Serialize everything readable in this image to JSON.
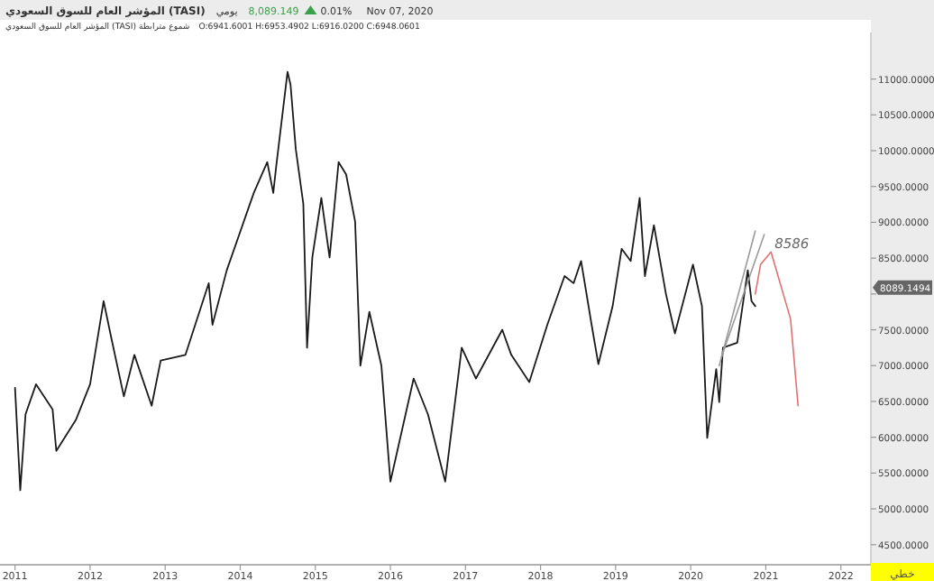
{
  "chart_data": {
    "type": "line",
    "title": "المؤشر العام للسوق السعودي (TASI)",
    "xlim": [
      2010.8,
      2022.4
    ],
    "ylim": [
      4220,
      11650
    ],
    "xticks": [
      2011,
      2012,
      2013,
      2014,
      2015,
      2016,
      2017,
      2018,
      2019,
      2020,
      2021,
      2022
    ],
    "yticks": [
      {
        "value": 4500,
        "label": "4500.0000"
      },
      {
        "value": 5000,
        "label": "5000.0000"
      },
      {
        "value": 5500,
        "label": "5500.0000"
      },
      {
        "value": 6000,
        "label": "6000.0000"
      },
      {
        "value": 6500,
        "label": "6500.0000"
      },
      {
        "value": 7000,
        "label": "7000.0000"
      },
      {
        "value": 7500,
        "label": "7500.0000"
      },
      {
        "value": 8000,
        "label": null
      },
      {
        "value": 8500,
        "label": "8500.0000"
      },
      {
        "value": 9000,
        "label": "9000.0000"
      },
      {
        "value": 9500,
        "label": "9500.0000"
      },
      {
        "value": 10000,
        "label": "10000.0000"
      },
      {
        "value": 10500,
        "label": "10500.0000"
      },
      {
        "value": 11000,
        "label": "11000.0000"
      }
    ],
    "grid": false,
    "series": [
      {
        "color": "#1a1a1a",
        "x": [
          2011.0,
          2011.07,
          2011.14,
          2011.28,
          2011.5,
          2011.55,
          2011.81,
          2012.0,
          2012.18,
          2012.28,
          2012.45,
          2012.59,
          2012.82,
          2012.94,
          2013.27,
          2013.58,
          2013.63,
          2013.82,
          2014.18,
          2014.36,
          2014.44,
          2014.48,
          2014.63,
          2014.67,
          2014.74,
          2014.84,
          2014.89,
          2014.96,
          2015.08,
          2015.19,
          2015.31,
          2015.41,
          2015.53,
          2015.6,
          2015.72,
          2015.88,
          2016.0,
          2016.31,
          2016.5,
          2016.73,
          2016.95,
          2017.14,
          2017.49,
          2017.61,
          2017.85,
          2018.09,
          2018.32,
          2018.44,
          2018.54,
          2018.68,
          2018.77,
          2018.96,
          2019.08,
          2019.2,
          2019.32,
          2019.39,
          2019.51,
          2019.67,
          2019.79,
          2020.03,
          2020.15,
          2020.22,
          2020.34,
          2020.38,
          2020.43,
          2020.62,
          2020.76,
          2020.81,
          2020.86
        ],
        "values": [
          6690,
          5260,
          6320,
          6740,
          6390,
          5810,
          6240,
          6740,
          7900,
          7400,
          6570,
          7150,
          6440,
          7070,
          7150,
          8150,
          7570,
          8330,
          9410,
          9840,
          9410,
          9790,
          11100,
          10920,
          10020,
          9260,
          7250,
          8510,
          9340,
          8510,
          9840,
          9670,
          9010,
          7000,
          7750,
          7000,
          5380,
          6820,
          6320,
          5380,
          7250,
          6820,
          7500,
          7150,
          6770,
          7570,
          8250,
          8150,
          8460,
          7570,
          7020,
          7830,
          8630,
          8460,
          9340,
          8250,
          8960,
          8000,
          7450,
          8410,
          7830,
          5990,
          6950,
          6490,
          7250,
          7320,
          8330,
          7900,
          7830
        ]
      },
      {
        "color": "#9a9a9a",
        "x": [
          2020.38,
          2020.86
        ],
        "values": [
          7000,
          8880
        ]
      },
      {
        "color": "#9a9a9a",
        "x": [
          2020.41,
          2020.98
        ],
        "values": [
          7120,
          8830
        ]
      },
      {
        "color": "#e07070",
        "x": [
          2020.86,
          2020.93,
          2021.07,
          2021.33,
          2021.43
        ],
        "values": [
          8000,
          8410,
          8586,
          7650,
          6440
        ]
      }
    ],
    "annotations": [
      "يومي",
      "8,089.149",
      "0.01%",
      "Nov 07, 2020",
      "المؤشر العام للسوق السعودي (TASI) شموع مترابطة",
      "O:6941.6001 H:6953.4902 L:6916.0200 C:6948.0601",
      "8089.1494",
      "خطي",
      {
        "text": "8586",
        "x": 2021.07,
        "y": 8586
      }
    ]
  }
}
